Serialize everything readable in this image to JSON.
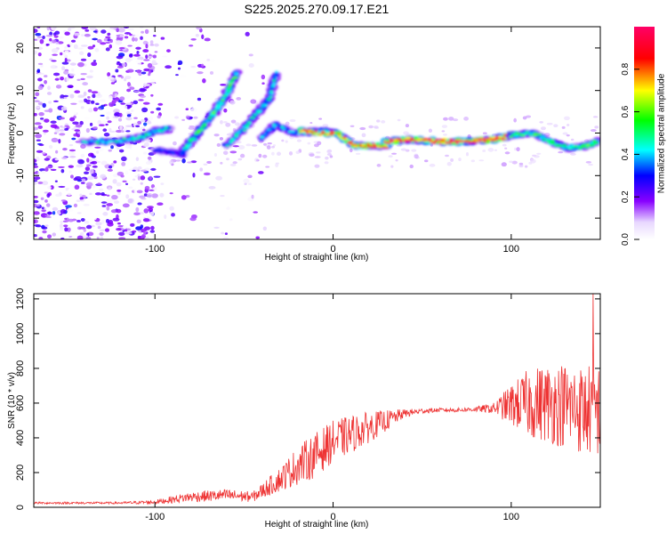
{
  "title": "S225.2025.270.09.17.E21",
  "chart_data": [
    {
      "type": "heatmap",
      "xlabel": "Height of straight line (km)",
      "ylabel": "Frequency (Hz)",
      "xlim": [
        -168,
        150
      ],
      "ylim": [
        -25,
        25
      ],
      "xticks": [
        -100,
        0,
        100
      ],
      "yticks": [
        -20,
        -10,
        0,
        10,
        20
      ],
      "colorbar": {
        "label": "Normalized spectral amplitude",
        "range": [
          0,
          1
        ],
        "ticks": [
          "0.0",
          "0.2",
          "0.4",
          "0.6",
          "0.8"
        ],
        "colormap": [
          "#ffffff",
          "#7f00ff",
          "#0000ff",
          "#00ffff",
          "#00ff00",
          "#ffff00",
          "#ff0000",
          "#ff0066"
        ]
      },
      "ridges": [
        {
          "x": [
            -100,
            -90,
            -84
          ],
          "y": [
            -4,
            -4.5,
            -5
          ],
          "amplitude": 0.3
        },
        {
          "x": [
            -140,
            -120,
            -108,
            -100,
            -92
          ],
          "y": [
            -2,
            -2,
            -1,
            0.5,
            1
          ],
          "amplitude": 0.45
        },
        {
          "x": [
            -84,
            -76,
            -68,
            -60,
            -54
          ],
          "y": [
            -4,
            0,
            4,
            9,
            14
          ],
          "amplitude": 0.55
        },
        {
          "x": [
            -60,
            -50,
            -42,
            -36,
            -32
          ],
          "y": [
            -3,
            1,
            5,
            8,
            14
          ],
          "amplitude": 0.45
        },
        {
          "x": [
            -40,
            -32,
            -22,
            -10,
            -2
          ],
          "y": [
            -1,
            2,
            0,
            0.5,
            0.5
          ],
          "amplitude": 0.4
        },
        {
          "x": [
            -18,
            -8,
            2,
            12,
            20,
            30
          ],
          "y": [
            0.5,
            0,
            0,
            -3,
            -3,
            -3
          ],
          "amplitude": 0.8
        },
        {
          "x": [
            30,
            45,
            60,
            75,
            90,
            100
          ],
          "y": [
            -2,
            -1.5,
            -2,
            -2,
            -1.5,
            -0.5
          ],
          "amplitude": 0.95
        },
        {
          "x": [
            100,
            112,
            122,
            132,
            142,
            148
          ],
          "y": [
            -0.5,
            0,
            -2,
            -3.5,
            -3,
            -2
          ],
          "amplitude": 0.55
        }
      ]
    },
    {
      "type": "line",
      "xlabel": "Height of straight line (km)",
      "ylabel": "SNR (10 * v/v)",
      "xlim": [
        -168,
        150
      ],
      "ylim": [
        0,
        1230
      ],
      "xticks": [
        -100,
        0,
        100
      ],
      "yticks": [
        0,
        200,
        400,
        600,
        800,
        1000,
        1200
      ],
      "color": "#ee3333",
      "envelope": {
        "x": [
          -168,
          -120,
          -100,
          -80,
          -60,
          -45,
          -30,
          -20,
          -10,
          0,
          10,
          20,
          30,
          40,
          50,
          60,
          70,
          80,
          90,
          100,
          110,
          120,
          130,
          140,
          150
        ],
        "y": [
          25,
          25,
          30,
          60,
          70,
          60,
          160,
          240,
          300,
          380,
          420,
          460,
          500,
          540,
          555,
          560,
          560,
          565,
          570,
          590,
          600,
          600,
          590,
          560,
          560
        ],
        "noise": [
          6,
          6,
          12,
          30,
          35,
          30,
          70,
          110,
          130,
          120,
          110,
          90,
          60,
          25,
          15,
          12,
          12,
          15,
          30,
          120,
          200,
          230,
          250,
          260,
          280
        ]
      },
      "peak": {
        "x": 146,
        "y": 1230
      }
    }
  ]
}
